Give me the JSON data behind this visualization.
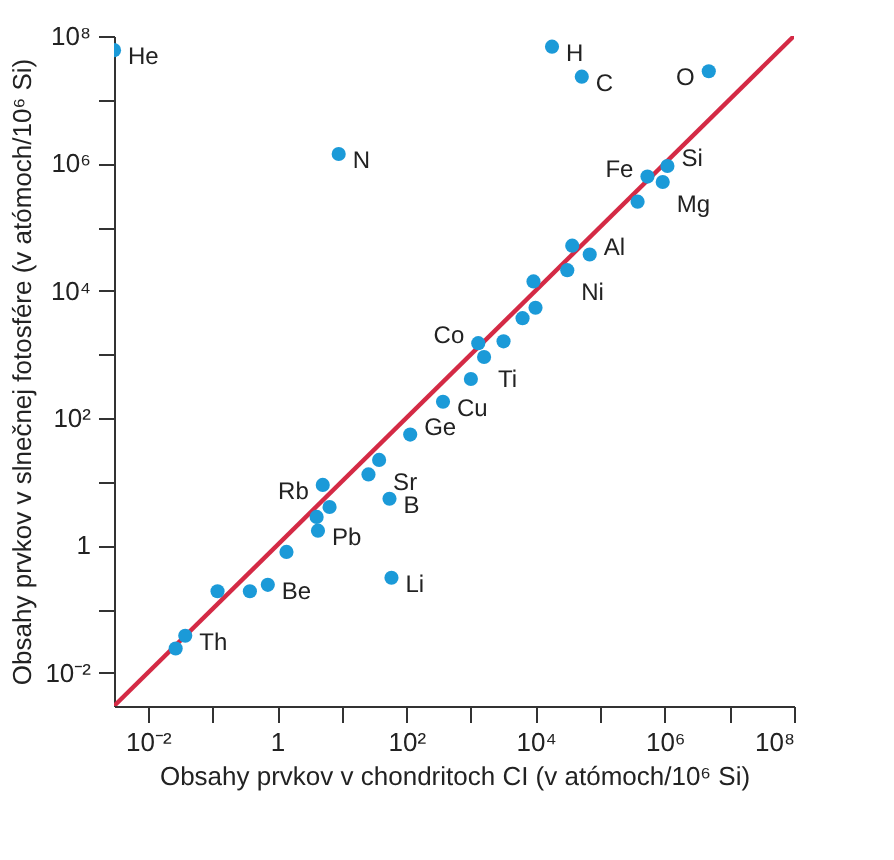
{
  "chart_data": {
    "type": "scatter",
    "xlabel": "Obsahy prvkov v chondritoch CI (v atómoch/10⁶ Si)",
    "ylabel": "Obsahy prvkov v slnečnej fotosfére (v atómoch/10⁶ Si)",
    "log": "xy",
    "grid": false,
    "xlim": [
      0.003,
      100000000
    ],
    "ylim": [
      0.003,
      100000000
    ],
    "xticks": [
      {
        "value": 0.01,
        "label": "10⁻²"
      },
      {
        "value": 0.1,
        "label": null
      },
      1,
      {
        "value": 10,
        "label": null
      },
      {
        "value": 100,
        "label": "10²"
      },
      {
        "value": 1000,
        "label": null
      },
      {
        "value": 10000,
        "label": "10⁴"
      },
      {
        "value": 100000,
        "label": null
      },
      {
        "value": 1000000,
        "label": "10⁶"
      },
      {
        "value": 10000000,
        "label": null
      },
      {
        "value": 100000000,
        "label": "10⁸"
      }
    ],
    "yticks": [
      {
        "value": 0.01,
        "label": "10⁻²"
      },
      {
        "value": 0.1,
        "label": null
      },
      1,
      {
        "value": 10,
        "label": null
      },
      {
        "value": 100,
        "label": "10²"
      },
      {
        "value": 1000,
        "label": null
      },
      {
        "value": 10000,
        "label": "10⁴"
      },
      {
        "value": 100000,
        "label": null
      },
      {
        "value": 1000000,
        "label": "10⁶"
      },
      {
        "value": 10000000,
        "label": null
      },
      {
        "value": 100000000,
        "label": "10⁸"
      }
    ],
    "series": [
      {
        "type": "line",
        "marker": "none",
        "color": "#d42a45",
        "x": [
          0.003,
          100000000
        ],
        "values": [
          0.003,
          100000000
        ]
      },
      {
        "marker": "circle",
        "color": "#1b9ad8",
        "x": [
          0.003,
          9,
          18000,
          52000,
          4800000,
          540000,
          1100000,
          930000,
          380000,
          37000,
          69000,
          31000,
          9300,
          6300,
          10000,
          1300,
          1600,
          3200,
          1000,
          370,
          115,
          38,
          26,
          55,
          5.1,
          6.5,
          4.1,
          4.3,
          1.4,
          59,
          0.72,
          0.38,
          0.12,
          0.038,
          0.027
        ],
        "values": [
          60000000,
          1400000,
          68000000,
          23000000,
          28000000,
          620000,
          910000,
          510000,
          250000,
          51000,
          37000,
          21000,
          14000,
          3700,
          5400,
          1500,
          910,
          1600,
          410,
          180,
          55,
          22,
          13,
          5.4,
          8.9,
          4.0,
          2.8,
          1.7,
          0.79,
          0.31,
          0.24,
          0.19,
          0.19,
          0.038,
          0.024
        ]
      }
    ],
    "annotations": [
      {
        "text": "He",
        "x": 0.003,
        "y": 60000000
      },
      {
        "text": "N",
        "x": 9,
        "y": 1400000
      },
      {
        "text": "H",
        "x": 18000,
        "y": 68000000
      },
      {
        "text": "C",
        "x": 52000,
        "y": 23000000
      },
      {
        "text": "O",
        "x": 4800000,
        "y": 28000000
      },
      {
        "text": "Fe",
        "x": 540000,
        "y": 620000
      },
      {
        "text": "Si",
        "x": 1100000,
        "y": 910000
      },
      {
        "text": "Mg",
        "x": 930000,
        "y": 510000
      },
      {
        "text": "Al",
        "x": 69000,
        "y": 37000
      },
      {
        "text": "Ni",
        "x": 31000,
        "y": 21000
      },
      {
        "text": "Co",
        "x": 1300,
        "y": 1500
      },
      {
        "text": "Ti",
        "x": 1600,
        "y": 910
      },
      {
        "text": "Cu",
        "x": 370,
        "y": 180
      },
      {
        "text": "Ge",
        "x": 115,
        "y": 55
      },
      {
        "text": "Sr",
        "x": 38,
        "y": 22
      },
      {
        "text": "B",
        "x": 55,
        "y": 5.4
      },
      {
        "text": "Rb",
        "x": 5.1,
        "y": 8.9
      },
      {
        "text": "Pb",
        "x": 4.3,
        "y": 1.7
      },
      {
        "text": "Li",
        "x": 59,
        "y": 0.31
      },
      {
        "text": "Be",
        "x": 0.72,
        "y": 0.24
      },
      {
        "text": "Th",
        "x": 0.038,
        "y": 0.038
      }
    ]
  }
}
